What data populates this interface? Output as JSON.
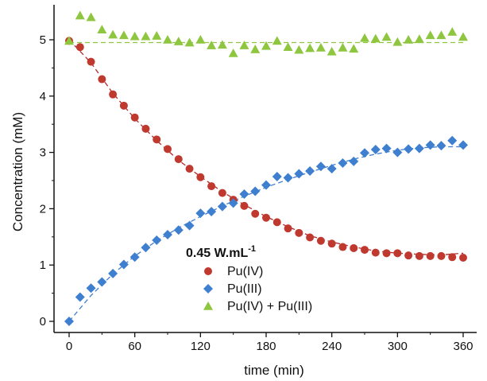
{
  "chart_data": {
    "type": "scatter",
    "xlabel": "time (min)",
    "ylabel": "Concentration (mM)",
    "xlim": [
      -10,
      370
    ],
    "ylim": [
      -0.2,
      5.4
    ],
    "xticks": [
      "0",
      "60",
      "120",
      "180",
      "240",
      "300",
      "360"
    ],
    "yticks": [
      "0",
      "1",
      "2",
      "3",
      "4",
      "5"
    ],
    "legend": {
      "title": "0.45 W.mL",
      "title_superscript": "-1",
      "position": "center-bottom"
    },
    "series": [
      {
        "name": "Pu(IV)",
        "marker": "circle",
        "color": "#c0392f",
        "x": [
          0,
          10,
          20,
          30,
          40,
          50,
          60,
          70,
          80,
          90,
          100,
          110,
          120,
          130,
          140,
          150,
          160,
          170,
          180,
          190,
          200,
          210,
          220,
          230,
          240,
          250,
          260,
          270,
          280,
          290,
          300,
          310,
          320,
          330,
          340,
          350,
          360
        ],
        "y": [
          4.98,
          4.87,
          4.61,
          4.3,
          4.03,
          3.83,
          3.62,
          3.42,
          3.23,
          3.06,
          2.88,
          2.71,
          2.56,
          2.4,
          2.28,
          2.16,
          2.05,
          1.91,
          1.84,
          1.76,
          1.65,
          1.57,
          1.49,
          1.43,
          1.38,
          1.32,
          1.3,
          1.27,
          1.22,
          1.21,
          1.21,
          1.17,
          1.16,
          1.16,
          1.16,
          1.14,
          1.13
        ]
      },
      {
        "name": "Pu(III)",
        "marker": "diamond",
        "color": "#3f7fcf",
        "x": [
          0,
          10,
          20,
          30,
          40,
          50,
          60,
          70,
          80,
          90,
          100,
          110,
          120,
          130,
          140,
          150,
          160,
          170,
          180,
          190,
          200,
          210,
          220,
          230,
          240,
          250,
          260,
          270,
          280,
          290,
          300,
          310,
          320,
          330,
          340,
          350,
          360
        ],
        "y": [
          0.0,
          0.43,
          0.59,
          0.7,
          0.85,
          1.01,
          1.14,
          1.31,
          1.44,
          1.54,
          1.62,
          1.7,
          1.92,
          1.95,
          2.04,
          2.1,
          2.26,
          2.31,
          2.42,
          2.57,
          2.55,
          2.62,
          2.67,
          2.75,
          2.71,
          2.81,
          2.84,
          2.99,
          3.05,
          3.07,
          3.0,
          3.06,
          3.07,
          3.13,
          3.12,
          3.21,
          3.13
        ]
      },
      {
        "name": "Pu(IV) + Pu(III)",
        "marker": "triangle",
        "color": "#8ec63f",
        "x": [
          0,
          10,
          20,
          30,
          40,
          50,
          60,
          70,
          80,
          90,
          100,
          110,
          120,
          130,
          140,
          150,
          160,
          170,
          180,
          190,
          200,
          210,
          220,
          230,
          240,
          250,
          260,
          270,
          280,
          290,
          300,
          310,
          320,
          330,
          340,
          350,
          360
        ],
        "y": [
          4.98,
          5.43,
          5.4,
          5.18,
          5.09,
          5.08,
          5.06,
          5.06,
          5.07,
          5.0,
          4.97,
          4.95,
          5.0,
          4.9,
          4.91,
          4.76,
          4.9,
          4.83,
          4.89,
          4.98,
          4.87,
          4.82,
          4.85,
          4.86,
          4.79,
          4.86,
          4.84,
          5.03,
          5.02,
          5.05,
          4.96,
          5.0,
          5.01,
          5.08,
          5.08,
          5.14,
          5.05
        ]
      }
    ],
    "fits": [
      {
        "color": "#b02a2a",
        "style": "dashed",
        "x": [
          0,
          20,
          40,
          60,
          80,
          100,
          120,
          140,
          160,
          180,
          200,
          220,
          240,
          260,
          280,
          300,
          320,
          340,
          360
        ],
        "y": [
          5.0,
          4.59,
          4.05,
          3.6,
          3.21,
          2.86,
          2.57,
          2.3,
          2.07,
          1.86,
          1.68,
          1.52,
          1.41,
          1.32,
          1.25,
          1.21,
          1.19,
          1.18,
          1.21
        ]
      },
      {
        "color": "#3f7fcf",
        "style": "dashed",
        "x": [
          0,
          20,
          40,
          60,
          80,
          100,
          120,
          140,
          160,
          180,
          200,
          220,
          240,
          260,
          280,
          300,
          320,
          340,
          360
        ],
        "y": [
          0.0,
          0.46,
          0.84,
          1.16,
          1.43,
          1.66,
          1.86,
          2.05,
          2.22,
          2.38,
          2.52,
          2.65,
          2.77,
          2.88,
          2.97,
          3.04,
          3.08,
          3.1,
          3.1
        ]
      },
      {
        "color": "#8ec63f",
        "style": "dashed",
        "x": [
          0,
          360
        ],
        "y": [
          4.95,
          4.95
        ]
      }
    ]
  }
}
